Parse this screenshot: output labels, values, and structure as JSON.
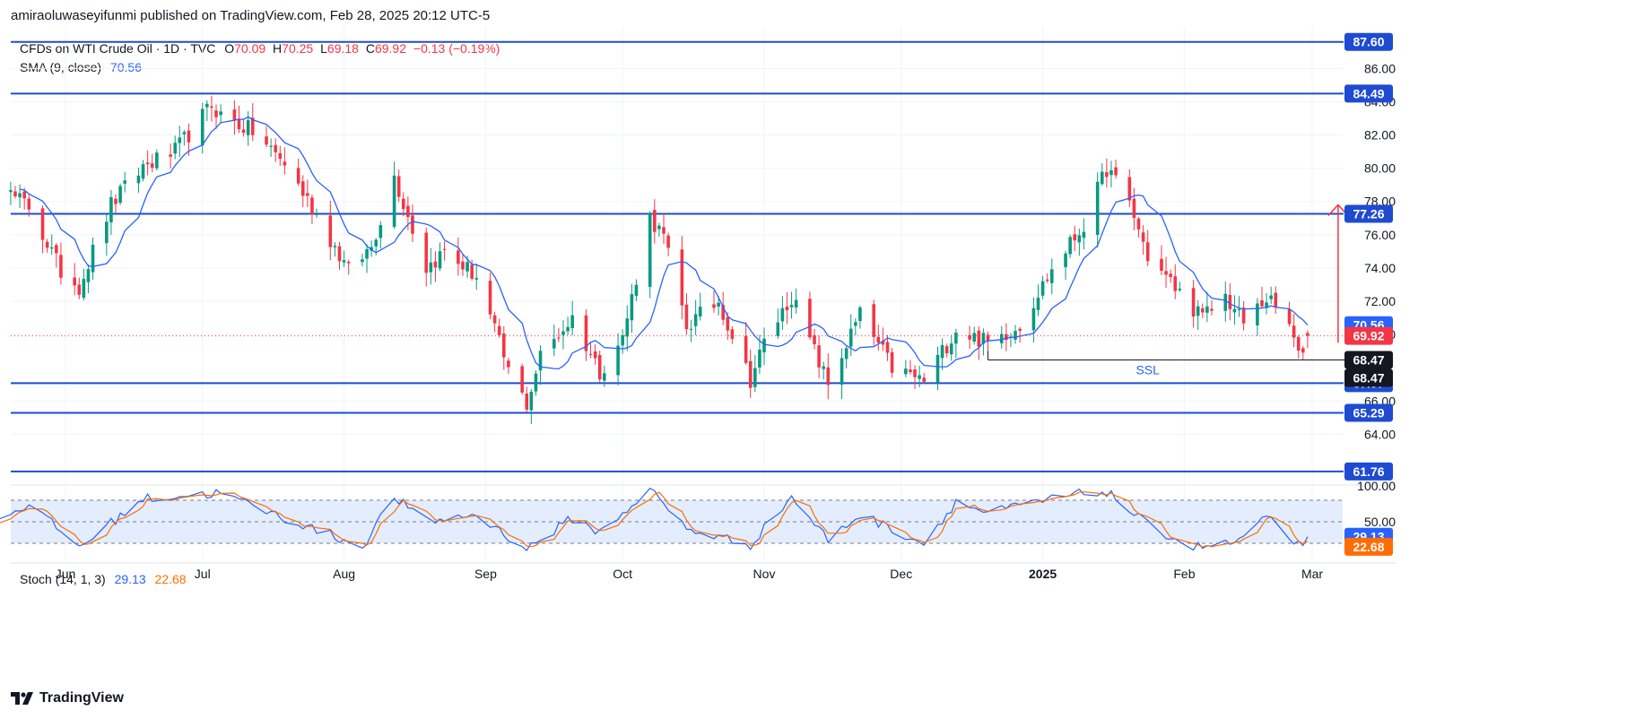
{
  "header": {
    "published": "amiraoluwaseyifunmi published on TradingView.com, Feb 28, 2025 20:12 UTC-5"
  },
  "legend": {
    "symbol": "CFDs on WTI Crude Oil · 1D · TVC",
    "o_label": "O",
    "o": "70.09",
    "h_label": "H",
    "h": "70.25",
    "l_label": "L",
    "l": "69.18",
    "c_label": "C",
    "c": "69.92",
    "change": "−0.13 (−0.19%)",
    "sma_label": "SMA (9, close)",
    "sma": "70.56"
  },
  "stoch_legend": {
    "label": "Stoch (14, 1, 3)",
    "k": "29.13",
    "d": "22.68"
  },
  "brand": {
    "name": "TradingView"
  },
  "colors": {
    "up": "#089981",
    "down": "#f23645",
    "sma": "#2962ff",
    "level": "#1e4bd2",
    "stoch_k": "#2962ff",
    "stoch_d": "#ff6d00",
    "band": "#e3edfd"
  },
  "chart_data": {
    "type": "candlestick",
    "symbol": "CFDs on WTI Crude Oil",
    "interval": "1D",
    "ylim": [
      61.0,
      88.5
    ],
    "y_ticks": [
      "86.00",
      "84.00",
      "82.00",
      "80.00",
      "78.00",
      "76.00",
      "74.00",
      "72.00",
      "70.00",
      "66.00",
      "64.00"
    ],
    "x_labels": [
      "Jun",
      "Jul",
      "Aug",
      "Sep",
      "Oct",
      "Nov",
      "Dec",
      "2025",
      "Feb",
      "Mar"
    ],
    "horizontal_levels": [
      {
        "value": 87.6,
        "label": "87.60"
      },
      {
        "value": 84.49,
        "label": "84.49"
      },
      {
        "value": 77.26,
        "label": "77.26"
      },
      {
        "value": 67.07,
        "label": "67.07"
      },
      {
        "value": 65.29,
        "label": "65.29"
      },
      {
        "value": 61.76,
        "label": "61.76"
      }
    ],
    "price_tags": [
      {
        "value": 70.56,
        "label": "70.56",
        "color": "#2962ff"
      },
      {
        "value": 69.92,
        "label": "69.92",
        "color": "#f23645"
      },
      {
        "value": 68.47,
        "label": "68.47",
        "color": "#131722"
      },
      {
        "value": 68.47,
        "label": "68.47",
        "color": "#131722",
        "offset": 1
      }
    ],
    "ssl": {
      "label": "SSL",
      "value": 68.47,
      "from": "2024-12-20",
      "to": "2025-02-28"
    },
    "arrow": {
      "date": "2025-02-28",
      "from": 69.5,
      "to": 77.8,
      "color": "#f23645"
    },
    "sma_period": 9,
    "anchors": [
      [
        "2024-05-10",
        79.3
      ],
      [
        "2024-05-17",
        78.9
      ],
      [
        "2024-05-24",
        77.7
      ],
      [
        "2024-05-31",
        73.8
      ],
      [
        "2024-06-04",
        72.9
      ],
      [
        "2024-06-11",
        77.8
      ],
      [
        "2024-06-18",
        80.1
      ],
      [
        "2024-06-25",
        81.0
      ],
      [
        "2024-07-03",
        83.8
      ],
      [
        "2024-07-05",
        83.2
      ],
      [
        "2024-07-12",
        82.2
      ],
      [
        "2024-07-19",
        80.3
      ],
      [
        "2024-07-26",
        77.2
      ],
      [
        "2024-08-02",
        73.8
      ],
      [
        "2024-08-07",
        75.3
      ],
      [
        "2024-08-12",
        79.5
      ],
      [
        "2024-08-19",
        74.0
      ],
      [
        "2024-08-23",
        75.0
      ],
      [
        "2024-08-30",
        73.5
      ],
      [
        "2024-09-06",
        67.8
      ],
      [
        "2024-09-10",
        65.8
      ],
      [
        "2024-09-13",
        68.7
      ],
      [
        "2024-09-20",
        71.0
      ],
      [
        "2024-09-26",
        67.8
      ],
      [
        "2024-10-01",
        69.8
      ],
      [
        "2024-10-07",
        77.1
      ],
      [
        "2024-10-10",
        75.8
      ],
      [
        "2024-10-15",
        70.5
      ],
      [
        "2024-10-22",
        72.0
      ],
      [
        "2024-10-29",
        67.3
      ],
      [
        "2024-11-01",
        69.5
      ],
      [
        "2024-11-07",
        72.3
      ],
      [
        "2024-11-15",
        67.0
      ],
      [
        "2024-11-22",
        71.2
      ],
      [
        "2024-11-29",
        68.0
      ],
      [
        "2024-12-06",
        67.2
      ],
      [
        "2024-12-13",
        70.3
      ],
      [
        "2024-12-20",
        69.5
      ],
      [
        "2024-12-27",
        70.6
      ],
      [
        "2025-01-03",
        73.9
      ],
      [
        "2025-01-10",
        76.6
      ],
      [
        "2025-01-15",
        80.0
      ],
      [
        "2025-01-20",
        77.9
      ],
      [
        "2025-01-24",
        74.7
      ],
      [
        "2025-01-31",
        72.5
      ],
      [
        "2025-02-05",
        71.0
      ],
      [
        "2025-02-10",
        72.3
      ],
      [
        "2025-02-14",
        70.7
      ],
      [
        "2025-02-19",
        72.2
      ],
      [
        "2025-02-24",
        70.6
      ],
      [
        "2025-02-26",
        68.6
      ],
      [
        "2025-02-28",
        69.92
      ]
    ],
    "stochastic": {
      "params": "14, 1, 3",
      "k_last": 29.13,
      "d_last": 22.68,
      "ylim": [
        0,
        100
      ],
      "y_ticks": [
        "100.00",
        "50.00"
      ],
      "band": [
        20,
        80
      ],
      "k_anchors": [
        [
          "2024-05-10",
          30
        ],
        [
          "2024-05-24",
          75
        ],
        [
          "2024-06-04",
          15
        ],
        [
          "2024-06-18",
          82
        ],
        [
          "2024-07-05",
          90
        ],
        [
          "2024-07-19",
          55
        ],
        [
          "2024-08-05",
          15
        ],
        [
          "2024-08-12",
          85
        ],
        [
          "2024-08-19",
          50
        ],
        [
          "2024-08-30",
          60
        ],
        [
          "2024-09-10",
          12
        ],
        [
          "2024-09-20",
          55
        ],
        [
          "2024-09-26",
          35
        ],
        [
          "2024-10-07",
          95
        ],
        [
          "2024-10-15",
          40
        ],
        [
          "2024-10-29",
          18
        ],
        [
          "2024-11-07",
          85
        ],
        [
          "2024-11-15",
          25
        ],
        [
          "2024-11-22",
          60
        ],
        [
          "2024-12-06",
          20
        ],
        [
          "2024-12-13",
          78
        ],
        [
          "2024-12-20",
          62
        ],
        [
          "2024-12-27",
          72
        ],
        [
          "2025-01-08",
          88
        ],
        [
          "2025-01-15",
          92
        ],
        [
          "2025-01-24",
          45
        ],
        [
          "2025-02-03",
          15
        ],
        [
          "2025-02-12",
          20
        ],
        [
          "2025-02-19",
          55
        ],
        [
          "2025-02-26",
          18
        ],
        [
          "2025-02-28",
          29.13
        ]
      ]
    }
  }
}
